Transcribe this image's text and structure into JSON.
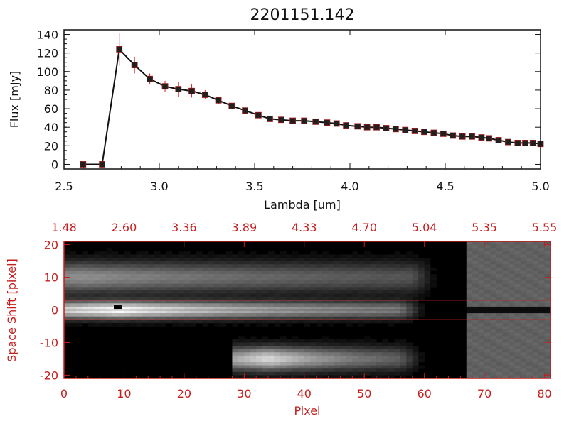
{
  "colors": {
    "axes": "#111111",
    "accent_red": "#c41e1e",
    "marker": "#202020",
    "error_bar": "#d02020",
    "line": "#111111"
  },
  "chart_data": [
    {
      "type": "line",
      "title": "2201151.142",
      "xlabel": "Lambda [um]",
      "ylabel": "Flux [mJy]",
      "xlim": [
        2.5,
        5.0
      ],
      "ylim": [
        -5,
        145
      ],
      "xticks": [
        "2.5",
        "3.0",
        "3.5",
        "4.0",
        "4.5",
        "5.0"
      ],
      "yticks": [
        "0",
        "20",
        "40",
        "60",
        "80",
        "100",
        "120",
        "140"
      ],
      "grid": false,
      "series": [
        {
          "x": [
            2.6,
            2.7,
            2.79,
            2.87,
            2.95,
            3.03,
            3.1,
            3.17,
            3.24,
            3.31,
            3.38,
            3.45,
            3.52,
            3.58,
            3.64,
            3.7,
            3.76,
            3.82,
            3.88,
            3.93,
            3.98,
            4.04,
            4.09,
            4.14,
            4.19,
            4.24,
            4.29,
            4.34,
            4.39,
            4.44,
            4.49,
            4.54,
            4.59,
            4.64,
            4.69,
            4.73,
            4.78,
            4.83,
            4.88,
            4.92,
            4.96,
            5.0
          ],
          "y": [
            0,
            0,
            124,
            107,
            92,
            84,
            81,
            79,
            75,
            69,
            63,
            58,
            53,
            49,
            48,
            47,
            47,
            46,
            45,
            44,
            42,
            41,
            40,
            40,
            39,
            38,
            37,
            36,
            35,
            34,
            33,
            31,
            30,
            30,
            29,
            28,
            26,
            24,
            23,
            23,
            23,
            22
          ],
          "yerr": [
            0,
            0,
            18,
            9,
            6,
            6,
            8,
            7,
            5,
            4,
            3,
            2,
            2,
            2,
            2,
            1,
            1,
            1,
            1,
            1,
            1,
            1,
            1,
            1,
            1,
            1,
            1,
            1,
            1,
            1,
            1,
            1,
            1,
            1,
            1,
            1,
            2,
            2,
            2,
            2,
            2,
            2
          ]
        }
      ]
    },
    {
      "type": "heatmap",
      "xlabel": "Pixel",
      "ylabel": "Space Shift [pixel]",
      "xlim": [
        0,
        81
      ],
      "ylim": [
        -21,
        21
      ],
      "xticks": [
        "0",
        "10",
        "20",
        "30",
        "40",
        "50",
        "60",
        "70",
        "80"
      ],
      "yticks": [
        "-20",
        "-10",
        "0",
        "10",
        "20"
      ],
      "top_axis_ticks": [
        "1.48",
        "2.60",
        "3.36",
        "3.89",
        "4.33",
        "4.70",
        "5.04",
        "5.35",
        "5.55"
      ],
      "top_axis_positions": [
        0,
        10,
        20,
        30,
        40,
        50,
        60,
        70,
        80
      ],
      "extraction_window": [
        -3,
        3
      ],
      "trace_center": 0,
      "masked_region_start": 67,
      "masked_level": 0.38,
      "sources": [
        {
          "x0": 0,
          "x1": 60,
          "center": 0,
          "width": 1.8,
          "peak_x": 9,
          "peak": 1.0,
          "decay": 0.035,
          "floor": 0.35
        },
        {
          "x0": 0,
          "x1": 62,
          "center": 10,
          "width": 3.2,
          "peak_x": 3,
          "peak": 0.55,
          "decay": 0.02,
          "floor": 0.2
        },
        {
          "x0": 28,
          "x1": 60,
          "center": -15,
          "width": 2.5,
          "peak_x": 34,
          "peak": 0.85,
          "decay": 0.06,
          "floor": 0.18
        }
      ]
    }
  ]
}
